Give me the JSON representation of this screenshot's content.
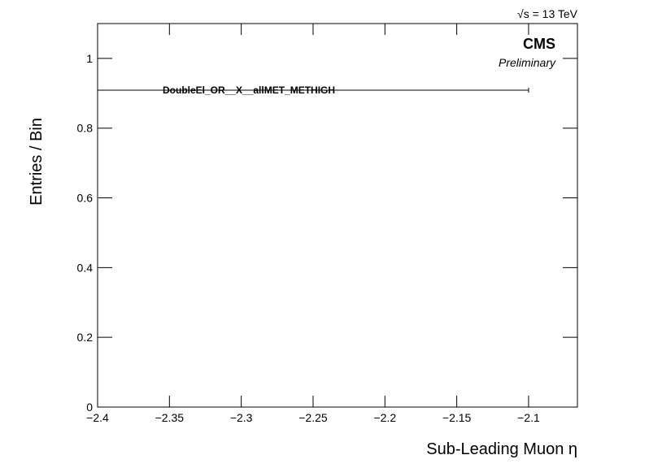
{
  "chart_data": {
    "type": "errorbar",
    "energy_label": "√s = 13 TeV",
    "experiment": "CMS",
    "status": "Preliminary",
    "xlabel": "Sub-Leading Muon η",
    "ylabel": "Entries / Bin",
    "series": [
      {
        "name": "DoubleEl_OR__X__allMET_METHIGH",
        "color": "#000000",
        "x": [
          -2.25
        ],
        "xerr": [
          0.15
        ],
        "values": [
          0.909
        ]
      }
    ],
    "xlim": [
      -2.4,
      -2.066
    ],
    "ylim": [
      0,
      1.1
    ],
    "xticks": [
      {
        "value": -2.4,
        "label": "−2.4"
      },
      {
        "value": -2.35,
        "label": "−2.35"
      },
      {
        "value": -2.3,
        "label": "−2.3"
      },
      {
        "value": -2.25,
        "label": "−2.25"
      },
      {
        "value": -2.2,
        "label": "−2.2"
      },
      {
        "value": -2.15,
        "label": "−2.15"
      },
      {
        "value": -2.1,
        "label": "−2.1"
      }
    ],
    "yticks": [
      0,
      0.2,
      0.4,
      0.6,
      0.8,
      1
    ],
    "grid": false
  }
}
